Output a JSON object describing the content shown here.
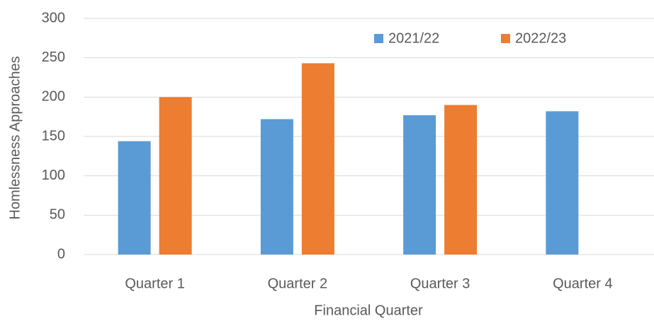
{
  "chart_data": {
    "type": "bar",
    "x_label": "Financial Quarter",
    "y_label": "Homlessness Approaches",
    "categories": [
      "Quarter 1",
      "Quarter 2",
      "Quarter 3",
      "Quarter 4"
    ],
    "series": [
      {
        "name": "2021/22",
        "color": "#5b9bd5",
        "values": [
          144,
          172,
          177,
          182
        ]
      },
      {
        "name": "2022/23",
        "color": "#ed7d31",
        "values": [
          200,
          243,
          190,
          null
        ]
      }
    ],
    "ylim": [
      0,
      300
    ],
    "yticks": [
      0,
      50,
      100,
      150,
      200,
      250,
      300
    ],
    "grid": true,
    "legend": "top-right"
  }
}
